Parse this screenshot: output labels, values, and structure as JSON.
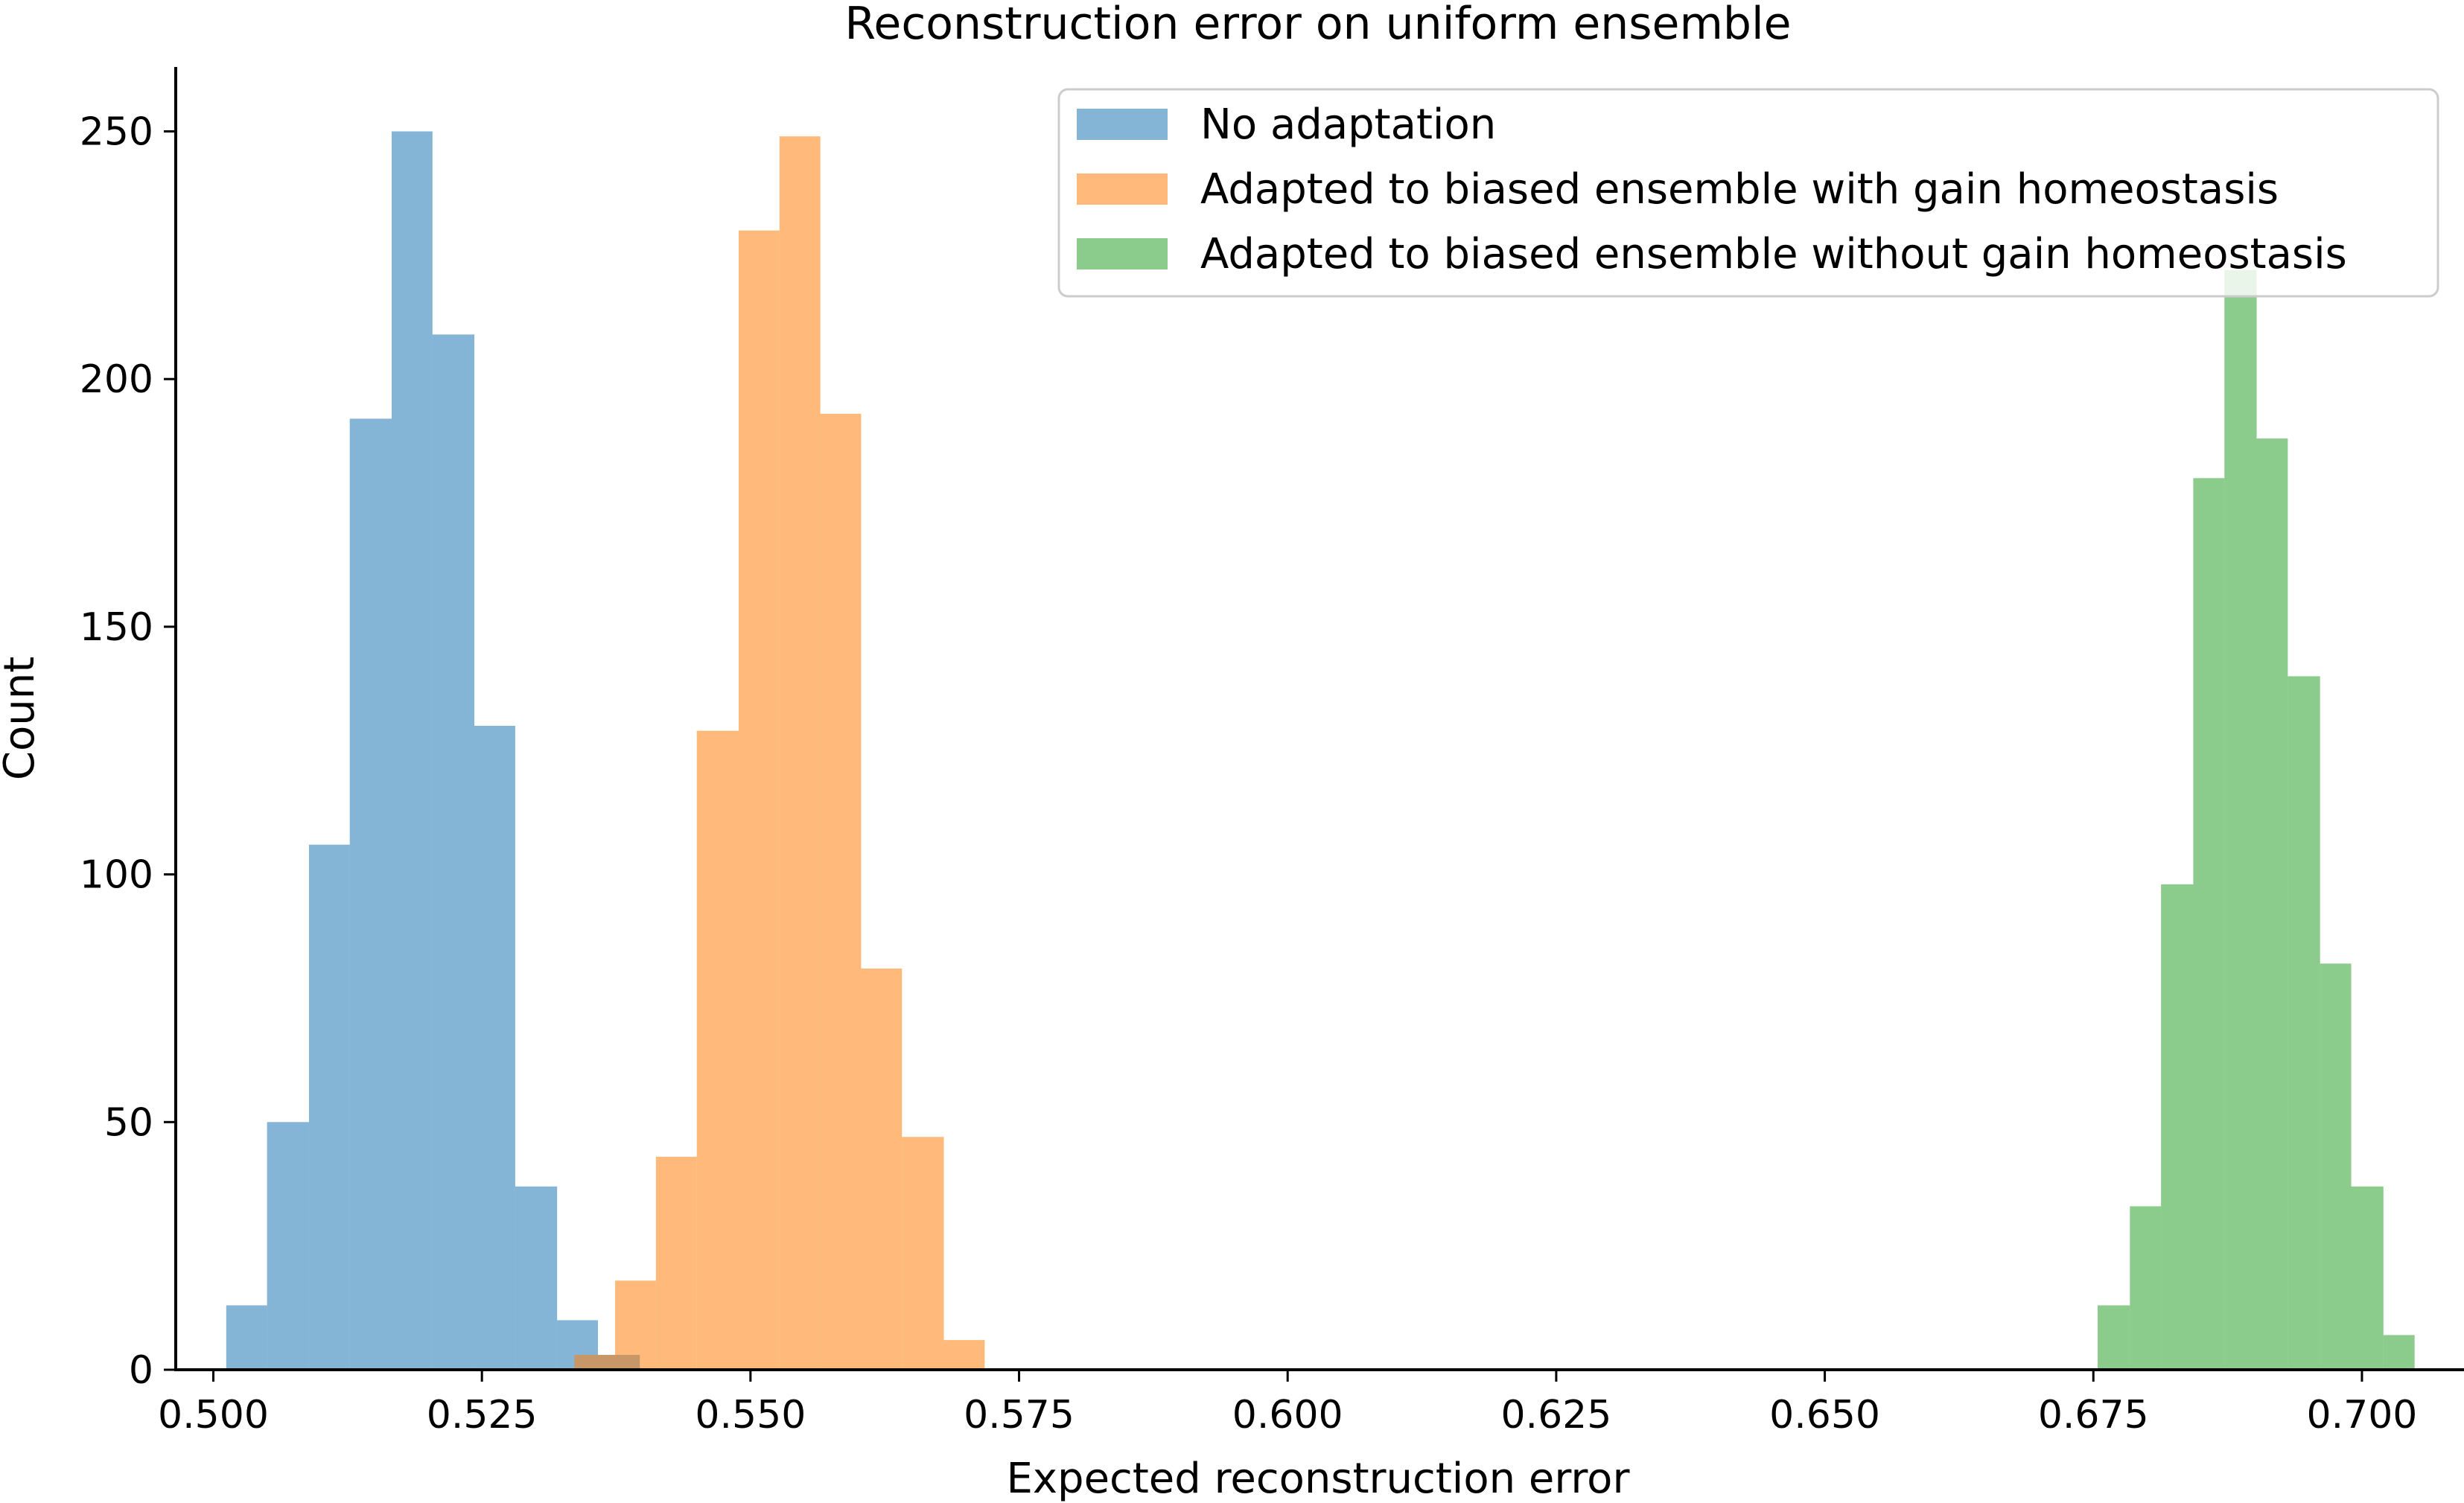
{
  "chart_data": {
    "type": "histogram",
    "title": "Reconstruction error on uniform ensemble",
    "xlabel": "Expected reconstruction error",
    "ylabel": "Count",
    "xlim": [
      0.4965,
      0.7095
    ],
    "ylim": [
      0,
      263
    ],
    "x_ticks": [
      "0.500",
      "0.525",
      "0.550",
      "0.575",
      "0.600",
      "0.625",
      "0.650",
      "0.675",
      "0.700"
    ],
    "x_tick_values": [
      0.5,
      0.525,
      0.55,
      0.575,
      0.6,
      0.625,
      0.65,
      0.675,
      0.7
    ],
    "y_ticks": [
      "0",
      "50",
      "100",
      "150",
      "200",
      "250"
    ],
    "y_tick_values": [
      0,
      50,
      100,
      150,
      200,
      250
    ],
    "grid": false,
    "legend_position": "upper right",
    "series": [
      {
        "name": "No adaptation",
        "color": "#1f77b4",
        "edges": [
          0.5012,
          0.505,
          0.5089,
          0.5127,
          0.5166,
          0.5204,
          0.5243,
          0.5281,
          0.532,
          0.5358,
          0.5397
        ],
        "counts": [
          13,
          50,
          106,
          192,
          250,
          209,
          130,
          37,
          10,
          3
        ]
      },
      {
        "name": "Adapted to biased ensemble with gain homeostasis",
        "color": "#ff7f0e",
        "edges": [
          0.5336,
          0.5374,
          0.5412,
          0.545,
          0.5489,
          0.5527,
          0.5565,
          0.5603,
          0.5641,
          0.568,
          0.5718
        ],
        "counts": [
          3,
          18,
          43,
          129,
          230,
          249,
          193,
          81,
          47,
          6
        ]
      },
      {
        "name": "Adapted to biased ensemble without gain homeostasis",
        "color": "#2ca02c",
        "edges": [
          0.6754,
          0.6784,
          0.6813,
          0.6843,
          0.6872,
          0.6902,
          0.6931,
          0.6961,
          0.699,
          0.702,
          0.7049
        ],
        "counts": [
          13,
          33,
          98,
          180,
          222,
          188,
          140,
          82,
          37,
          7
        ]
      }
    ]
  }
}
